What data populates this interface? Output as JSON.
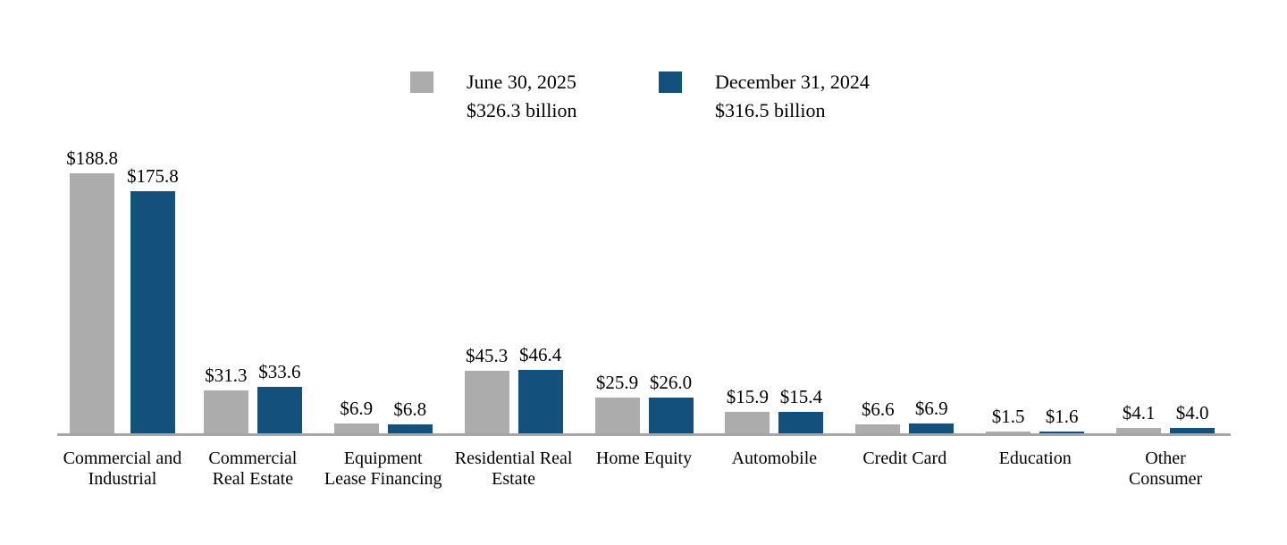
{
  "legend": {
    "items": [
      {
        "label": "June 30, 2025",
        "total": "$326.3 billion",
        "color": "#acacac"
      },
      {
        "label": "December 31, 2024",
        "total": "$316.5 billion",
        "color": "#13507c"
      }
    ]
  },
  "chart_data": {
    "type": "bar",
    "title": "",
    "categories": [
      "Commercial and\nIndustrial",
      "Commercial\nReal Estate",
      "Equipment\nLease Financing",
      "Residential Real\nEstate",
      "Home Equity",
      "Automobile",
      "Credit Card",
      "Education",
      "Other\nConsumer"
    ],
    "series": [
      {
        "name": "June 30, 2025",
        "total_label": "$326.3 billion",
        "color": "#acacac",
        "values": [
          188.8,
          31.3,
          6.9,
          45.3,
          25.9,
          15.9,
          6.6,
          1.5,
          4.1
        ],
        "labels": [
          "$188.8",
          "$31.3",
          "$6.9",
          "$45.3",
          "$25.9",
          "$15.9",
          "$6.6",
          "$1.5",
          "$4.1"
        ]
      },
      {
        "name": "December 31, 2024",
        "total_label": "$316.5 billion",
        "color": "#13507c",
        "values": [
          175.8,
          33.6,
          6.8,
          46.4,
          26.0,
          15.4,
          6.9,
          1.6,
          4.0
        ],
        "labels": [
          "$175.8",
          "$33.6",
          "$6.8",
          "$46.4",
          "$26.0",
          "$15.4",
          "$6.9",
          "$1.6",
          "$4.0"
        ]
      }
    ],
    "xlabel": "",
    "ylabel": "",
    "ylim": [
      0,
      200
    ],
    "grid": false,
    "legend_position": "top-center",
    "axis_line_color": "#a6a6a6",
    "value_labels_shown": true
  }
}
